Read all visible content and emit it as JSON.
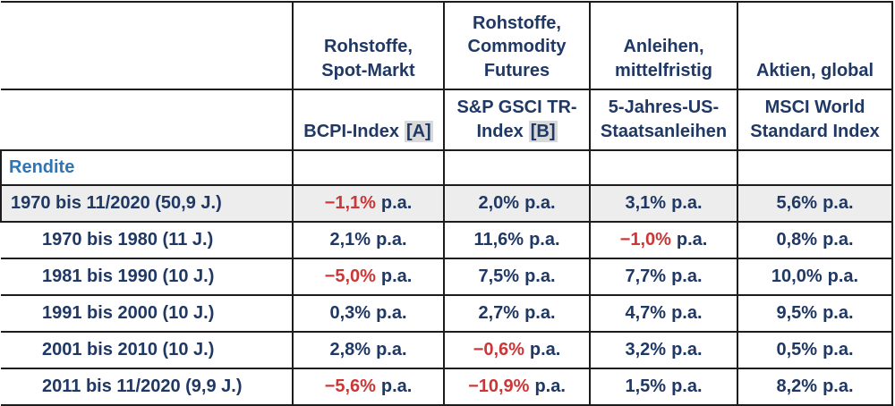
{
  "colors": {
    "navy": "#1F3864",
    "blue": "#2E75B6",
    "red": "#CC3636",
    "gray_row": "#EDEDED",
    "ref_bg": "#D9D9D9",
    "border": "#1c1c1c"
  },
  "header": {
    "col1": {
      "line1": "Rohstoffe,",
      "line2": "Spot-Markt"
    },
    "col2": {
      "line1": "Rohstoffe,",
      "line2": "Commodity",
      "line3": "Futures"
    },
    "col3": {
      "line1": "Anleihen,",
      "line2": "mittelfristig"
    },
    "col4": {
      "line1": "Aktien, global"
    },
    "sub1": {
      "text": "BCPI-Index",
      "ref": "[A]"
    },
    "sub2": {
      "line1": "S&P GSCI TR-",
      "line2": "Index",
      "ref": "[B]"
    },
    "sub3": {
      "line1": "5-Jahres-US-",
      "line2": "Staatsanleihen"
    },
    "sub4": {
      "line1": "MSCI World",
      "line2": "Standard Index"
    }
  },
  "section_label": "Rendite",
  "units": {
    "pa": "p.a."
  },
  "rows": [
    {
      "label": "1970 bis 11/2020 (50,9 J.)",
      "highlight": true,
      "values": [
        {
          "num": "−1,1%",
          "neg": true
        },
        {
          "num": "2,0%",
          "neg": false
        },
        {
          "num": "3,1%",
          "neg": false
        },
        {
          "num": "5,6%",
          "neg": false
        }
      ]
    },
    {
      "label": "1970 bis 1980 (11 J.)",
      "highlight": false,
      "values": [
        {
          "num": "2,1%",
          "neg": false
        },
        {
          "num": "11,6%",
          "neg": false
        },
        {
          "num": "−1,0%",
          "neg": true
        },
        {
          "num": "0,8%",
          "neg": false
        }
      ]
    },
    {
      "label": "1981 bis 1990 (10 J.)",
      "highlight": false,
      "values": [
        {
          "num": "−5,0%",
          "neg": true
        },
        {
          "num": "7,5%",
          "neg": false
        },
        {
          "num": "7,7%",
          "neg": false
        },
        {
          "num": "10,0%",
          "neg": false
        }
      ]
    },
    {
      "label": "1991 bis 2000 (10 J.)",
      "highlight": false,
      "values": [
        {
          "num": "0,3%",
          "neg": false
        },
        {
          "num": "2,7%",
          "neg": false
        },
        {
          "num": "4,7%",
          "neg": false
        },
        {
          "num": "9,5%",
          "neg": false
        }
      ]
    },
    {
      "label": "2001 bis 2010 (10 J.)",
      "highlight": false,
      "values": [
        {
          "num": "2,8%",
          "neg": false
        },
        {
          "num": "−0,6%",
          "neg": true
        },
        {
          "num": "3,2%",
          "neg": false
        },
        {
          "num": "0,5%",
          "neg": false
        }
      ]
    },
    {
      "label": "2011 bis 11/2020 (9,9 J.)",
      "highlight": false,
      "values": [
        {
          "num": "−5,6%",
          "neg": true
        },
        {
          "num": "−10,9%",
          "neg": true
        },
        {
          "num": "1,5%",
          "neg": false
        },
        {
          "num": "8,2%",
          "neg": false
        }
      ]
    }
  ]
}
